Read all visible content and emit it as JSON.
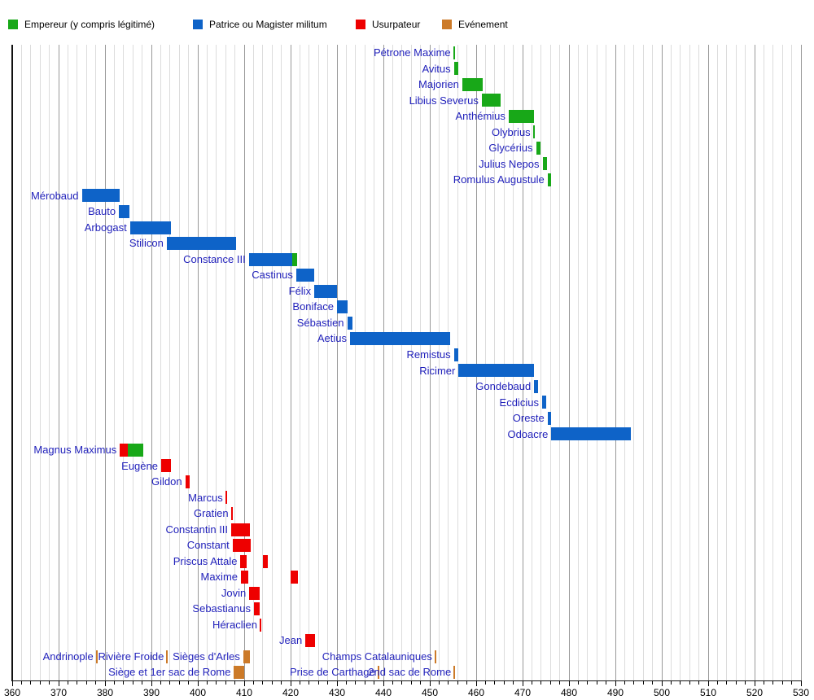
{
  "legend": {
    "items": [
      {
        "label": "Empereur (y compris légitimé)",
        "category": "emperor"
      },
      {
        "label": "Patrice ou Magister militum",
        "category": "patrice"
      },
      {
        "label": "Usurpateur",
        "category": "usurper"
      },
      {
        "label": "Evénement",
        "category": "event"
      }
    ]
  },
  "chart_data": {
    "type": "bar",
    "subtype": "gantt-timeline",
    "title": "",
    "xlabel": "",
    "ylabel": "",
    "x_axis": {
      "min": 360,
      "max": 530,
      "major_step": 10,
      "minor_step": 2,
      "tick_labels": [
        "360",
        "370",
        "380",
        "390",
        "400",
        "410",
        "420",
        "430",
        "440",
        "450",
        "460",
        "470",
        "480",
        "490",
        "500",
        "510",
        "520",
        "530"
      ]
    },
    "colors": {
      "emperor": "#18a818",
      "patrice": "#0e63c8",
      "usurper": "#ee0000",
      "event": "#cc7a28",
      "label_text": "#2222bb",
      "grid_minor": "#dcdcdc",
      "grid_major": "#999999",
      "axis": "#111111"
    },
    "rows": [
      {
        "items": [
          {
            "label": "Pétrone Maxime",
            "segments": [
              {
                "category": "emperor",
                "at": 455.2
              }
            ]
          }
        ]
      },
      {
        "items": [
          {
            "label": "Avitus",
            "segments": [
              {
                "category": "emperor",
                "start": 455.2,
                "end": 456.2
              }
            ]
          }
        ]
      },
      {
        "items": [
          {
            "label": "Majorien",
            "segments": [
              {
                "category": "emperor",
                "start": 457.0,
                "end": 461.4
              }
            ]
          }
        ]
      },
      {
        "items": [
          {
            "label": "Libius Severus",
            "segments": [
              {
                "category": "emperor",
                "start": 461.2,
                "end": 465.3
              }
            ]
          }
        ]
      },
      {
        "items": [
          {
            "label": "Anthémius",
            "segments": [
              {
                "category": "emperor",
                "start": 467.0,
                "end": 472.4
              }
            ]
          }
        ]
      },
      {
        "items": [
          {
            "label": "Olybrius",
            "segments": [
              {
                "category": "emperor",
                "at": 472.4
              }
            ]
          }
        ]
      },
      {
        "items": [
          {
            "label": "Glycérius",
            "segments": [
              {
                "category": "emperor",
                "start": 472.9,
                "end": 473.9
              }
            ]
          }
        ]
      },
      {
        "items": [
          {
            "label": "Julius Nepos",
            "segments": [
              {
                "category": "emperor",
                "start": 474.3,
                "end": 475.2
              }
            ]
          }
        ]
      },
      {
        "items": [
          {
            "label": "Romulus Augustule",
            "segments": [
              {
                "category": "emperor",
                "start": 475.4,
                "end": 476.2
              }
            ]
          }
        ]
      },
      {
        "items": [
          {
            "label": "Mérobaud",
            "segments": [
              {
                "category": "patrice",
                "start": 375.0,
                "end": 383.2
              }
            ]
          }
        ]
      },
      {
        "items": [
          {
            "label": "Bauto",
            "segments": [
              {
                "category": "patrice",
                "start": 383.0,
                "end": 385.2
              }
            ]
          }
        ]
      },
      {
        "items": [
          {
            "label": "Arbogast",
            "segments": [
              {
                "category": "patrice",
                "start": 385.4,
                "end": 394.2
              }
            ]
          }
        ]
      },
      {
        "items": [
          {
            "label": "Stilicon",
            "segments": [
              {
                "category": "patrice",
                "start": 393.3,
                "end": 408.3
              }
            ]
          }
        ]
      },
      {
        "items": [
          {
            "label": "Constance III",
            "segments": [
              {
                "category": "patrice",
                "start": 411.0,
                "end": 420.3
              },
              {
                "category": "emperor",
                "start": 420.3,
                "end": 421.4
              }
            ]
          }
        ]
      },
      {
        "items": [
          {
            "label": "Castinus",
            "segments": [
              {
                "category": "patrice",
                "start": 421.2,
                "end": 425.1
              }
            ]
          }
        ]
      },
      {
        "items": [
          {
            "label": "Félix",
            "segments": [
              {
                "category": "patrice",
                "start": 425.1,
                "end": 430.0
              }
            ]
          }
        ]
      },
      {
        "items": [
          {
            "label": "Boniface",
            "segments": [
              {
                "category": "patrice",
                "start": 430.0,
                "end": 432.2
              }
            ]
          }
        ]
      },
      {
        "items": [
          {
            "label": "Sébastien",
            "segments": [
              {
                "category": "patrice",
                "start": 432.2,
                "end": 433.4
              }
            ]
          }
        ]
      },
      {
        "items": [
          {
            "label": "Aetius",
            "segments": [
              {
                "category": "patrice",
                "start": 432.8,
                "end": 454.4
              }
            ]
          }
        ]
      },
      {
        "items": [
          {
            "label": "Remistus",
            "segments": [
              {
                "category": "patrice",
                "start": 455.2,
                "end": 456.1
              }
            ]
          }
        ]
      },
      {
        "items": [
          {
            "label": "Ricimer",
            "segments": [
              {
                "category": "patrice",
                "start": 456.2,
                "end": 472.4
              }
            ]
          }
        ]
      },
      {
        "items": [
          {
            "label": "Gondebaud",
            "segments": [
              {
                "category": "patrice",
                "start": 472.5,
                "end": 473.3
              }
            ]
          }
        ]
      },
      {
        "items": [
          {
            "label": "Ecdicius",
            "segments": [
              {
                "category": "patrice",
                "start": 474.2,
                "end": 475.1
              }
            ]
          }
        ]
      },
      {
        "items": [
          {
            "label": "Oreste",
            "segments": [
              {
                "category": "patrice",
                "start": 475.4,
                "end": 476.2
              }
            ]
          }
        ]
      },
      {
        "items": [
          {
            "label": "Odoacre",
            "segments": [
              {
                "category": "patrice",
                "start": 476.2,
                "end": 493.3
              }
            ]
          }
        ]
      },
      {
        "items": [
          {
            "label": "Magnus Maximus",
            "segments": [
              {
                "category": "usurper",
                "start": 383.2,
                "end": 384.9
              },
              {
                "category": "emperor",
                "start": 384.9,
                "end": 388.3
              }
            ]
          }
        ]
      },
      {
        "items": [
          {
            "label": "Eugène",
            "segments": [
              {
                "category": "usurper",
                "start": 392.1,
                "end": 394.2
              }
            ]
          }
        ]
      },
      {
        "items": [
          {
            "label": "Gildon",
            "segments": [
              {
                "category": "usurper",
                "start": 397.3,
                "end": 398.3
              }
            ]
          }
        ]
      },
      {
        "items": [
          {
            "label": "Marcus",
            "segments": [
              {
                "category": "usurper",
                "at": 406.1
              }
            ]
          }
        ]
      },
      {
        "items": [
          {
            "label": "Gratien",
            "segments": [
              {
                "category": "usurper",
                "at": 407.3
              }
            ]
          }
        ]
      },
      {
        "items": [
          {
            "label": "Constantin III",
            "segments": [
              {
                "category": "usurper",
                "start": 407.2,
                "end": 411.3
              }
            ]
          }
        ]
      },
      {
        "items": [
          {
            "label": "Constant",
            "segments": [
              {
                "category": "usurper",
                "start": 407.5,
                "end": 411.4
              }
            ]
          }
        ]
      },
      {
        "items": [
          {
            "label": "Priscus Attale",
            "segments": [
              {
                "category": "usurper",
                "start": 409.2,
                "end": 410.5
              },
              {
                "category": "usurper",
                "start": 414.0,
                "end": 415.1
              }
            ]
          }
        ]
      },
      {
        "items": [
          {
            "label": "Maxime",
            "segments": [
              {
                "category": "usurper",
                "start": 409.3,
                "end": 410.8
              },
              {
                "category": "usurper",
                "start": 420.0,
                "end": 421.5
              }
            ]
          }
        ]
      },
      {
        "items": [
          {
            "label": "Jovin",
            "segments": [
              {
                "category": "usurper",
                "start": 411.1,
                "end": 413.3
              }
            ]
          }
        ]
      },
      {
        "items": [
          {
            "label": "Sebastianus",
            "segments": [
              {
                "category": "usurper",
                "start": 412.1,
                "end": 413.3
              }
            ]
          }
        ]
      },
      {
        "items": [
          {
            "label": "Héraclien",
            "segments": [
              {
                "category": "usurper",
                "at": 413.5
              }
            ]
          }
        ]
      },
      {
        "items": [
          {
            "label": "Jean",
            "segments": [
              {
                "category": "usurper",
                "start": 423.2,
                "end": 425.3
              }
            ]
          }
        ]
      },
      {
        "items": [
          {
            "label": "Andrinople",
            "segments": [
              {
                "category": "event",
                "at": 378.2
              }
            ]
          },
          {
            "label": "Rivière Froide",
            "segments": [
              {
                "category": "event",
                "at": 393.4
              }
            ]
          },
          {
            "label": "Sièges d'Arles",
            "segments": [
              {
                "category": "event",
                "start": 409.8,
                "end": 411.3
              }
            ]
          },
          {
            "label": "Champs Catalauniques",
            "segments": [
              {
                "category": "event",
                "at": 451.2
              }
            ]
          }
        ]
      },
      {
        "items": [
          {
            "label": "Siège et 1er sac de Rome",
            "segments": [
              {
                "category": "event",
                "start": 407.8,
                "end": 410.0
              }
            ]
          },
          {
            "label": "Prise de Carthage",
            "segments": [
              {
                "category": "event",
                "at": 438.9
              }
            ]
          },
          {
            "label": "2nd sac de Rome",
            "segments": [
              {
                "category": "event",
                "at": 455.3
              }
            ]
          }
        ]
      }
    ]
  }
}
